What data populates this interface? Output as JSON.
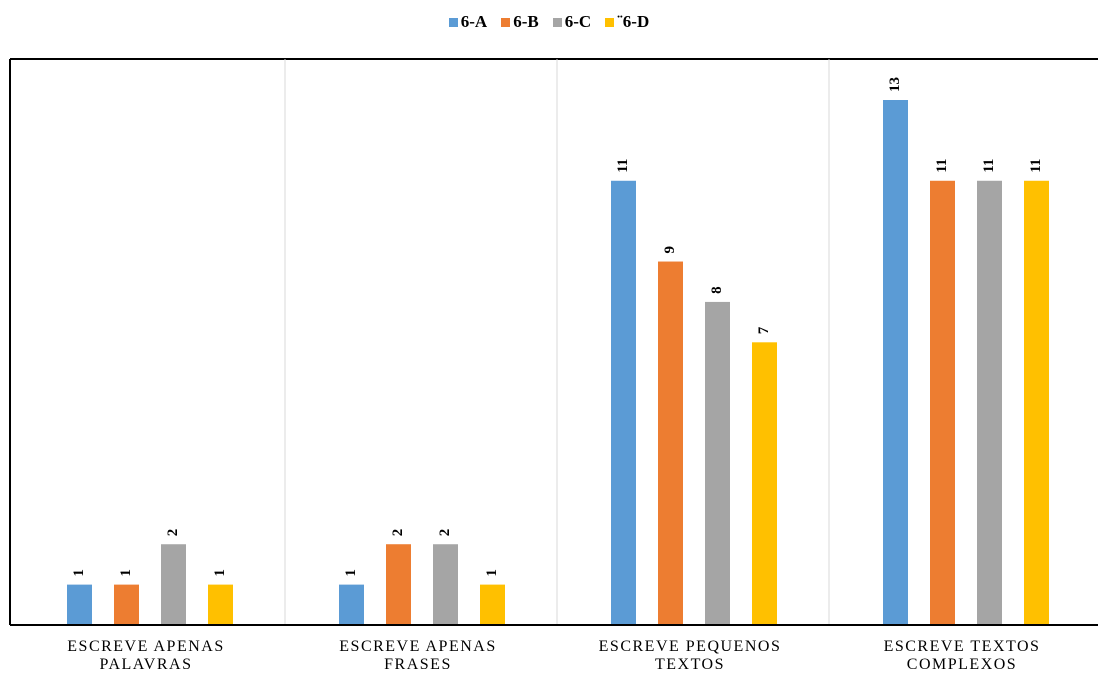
{
  "chart_data": {
    "type": "bar",
    "categories": [
      [
        "ESCREVE APENAS",
        "PALAVRAS"
      ],
      [
        "ESCREVE APENAS",
        "FRASES"
      ],
      [
        "ESCREVE PEQUENOS",
        "TEXTOS"
      ],
      [
        "ESCREVE TEXTOS",
        "COMPLEXOS"
      ]
    ],
    "series": [
      {
        "name": "6-A",
        "color": "#5b9bd5",
        "values": [
          1,
          1,
          11,
          13
        ]
      },
      {
        "name": "6-B",
        "color": "#ed7d31",
        "values": [
          1,
          2,
          9,
          11
        ]
      },
      {
        "name": "6-C",
        "color": "#a5a5a5",
        "values": [
          2,
          2,
          8,
          11
        ]
      },
      {
        "name": "¨6-D",
        "color": "#ffc000",
        "values": [
          1,
          1,
          7,
          11
        ]
      }
    ],
    "ylim": [
      0,
      14
    ],
    "legend": "top-center",
    "data_labels": "rotated",
    "grid": "category-separators"
  }
}
